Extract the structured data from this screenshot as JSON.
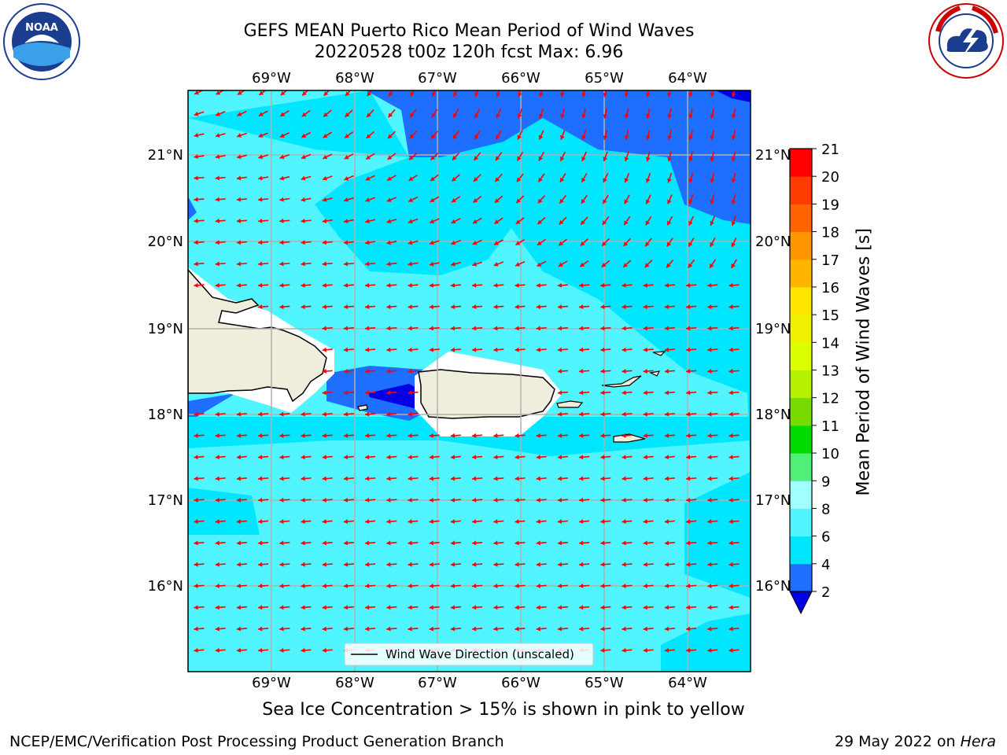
{
  "title_line1": "GEFS MEAN Puerto Rico Mean Period of Wind Waves",
  "title_line2": "20220528 t00z 120h fcst   Max: 6.96",
  "logos": {
    "left": "noaa-logo",
    "right": "nws-logo"
  },
  "logo_text": {
    "noaa": "NOAA",
    "noaa_ring": "NATIONAL OCEANIC AND ATMOSPHERIC ADMINISTRATION · U.S. DEPARTMENT OF COMMERCE",
    "nws_ring": "NATIONAL WEATHER SERVICE"
  },
  "lon_labels": [
    "69°W",
    "68°W",
    "67°W",
    "66°W",
    "65°W",
    "64°W"
  ],
  "lat_labels": [
    "21°N",
    "20°N",
    "19°N",
    "18°N",
    "17°N",
    "16°N"
  ],
  "legend_label": "Wind Wave Direction (unscaled)",
  "colorbar": {
    "label": "Mean Period of Wind Waves [s]",
    "ticks": [
      "2",
      "4",
      "6",
      "8",
      "9",
      "10",
      "11",
      "12",
      "13",
      "14",
      "15",
      "16",
      "17",
      "18",
      "19",
      "20",
      "21"
    ],
    "colors": [
      "#0000e6",
      "#1e6eff",
      "#00e6ff",
      "#50f5ff",
      "#a0ffff",
      "#50f078",
      "#00dc00",
      "#78dc00",
      "#b4f000",
      "#dcff00",
      "#f0f000",
      "#ffe600",
      "#ffb400",
      "#ff9600",
      "#ff6400",
      "#ff3c00",
      "#ff0000"
    ]
  },
  "colors": {
    "land": "#efeddc",
    "arrow": "#ff0000",
    "grid": "#b0b0b0",
    "period_lt4": "#1e6eff",
    "period_4_6": "#00e6ff",
    "period_6_8": "#50f5ff",
    "period_lt2": "#0000e6"
  },
  "icenote": "Sea Ice Concentration > 15% is shown in pink to yellow",
  "footer_left": "NCEP/EMC/Verification Post Processing Product Generation Branch",
  "footer_date": "29 May 2022 on",
  "footer_machine": "Hera"
}
